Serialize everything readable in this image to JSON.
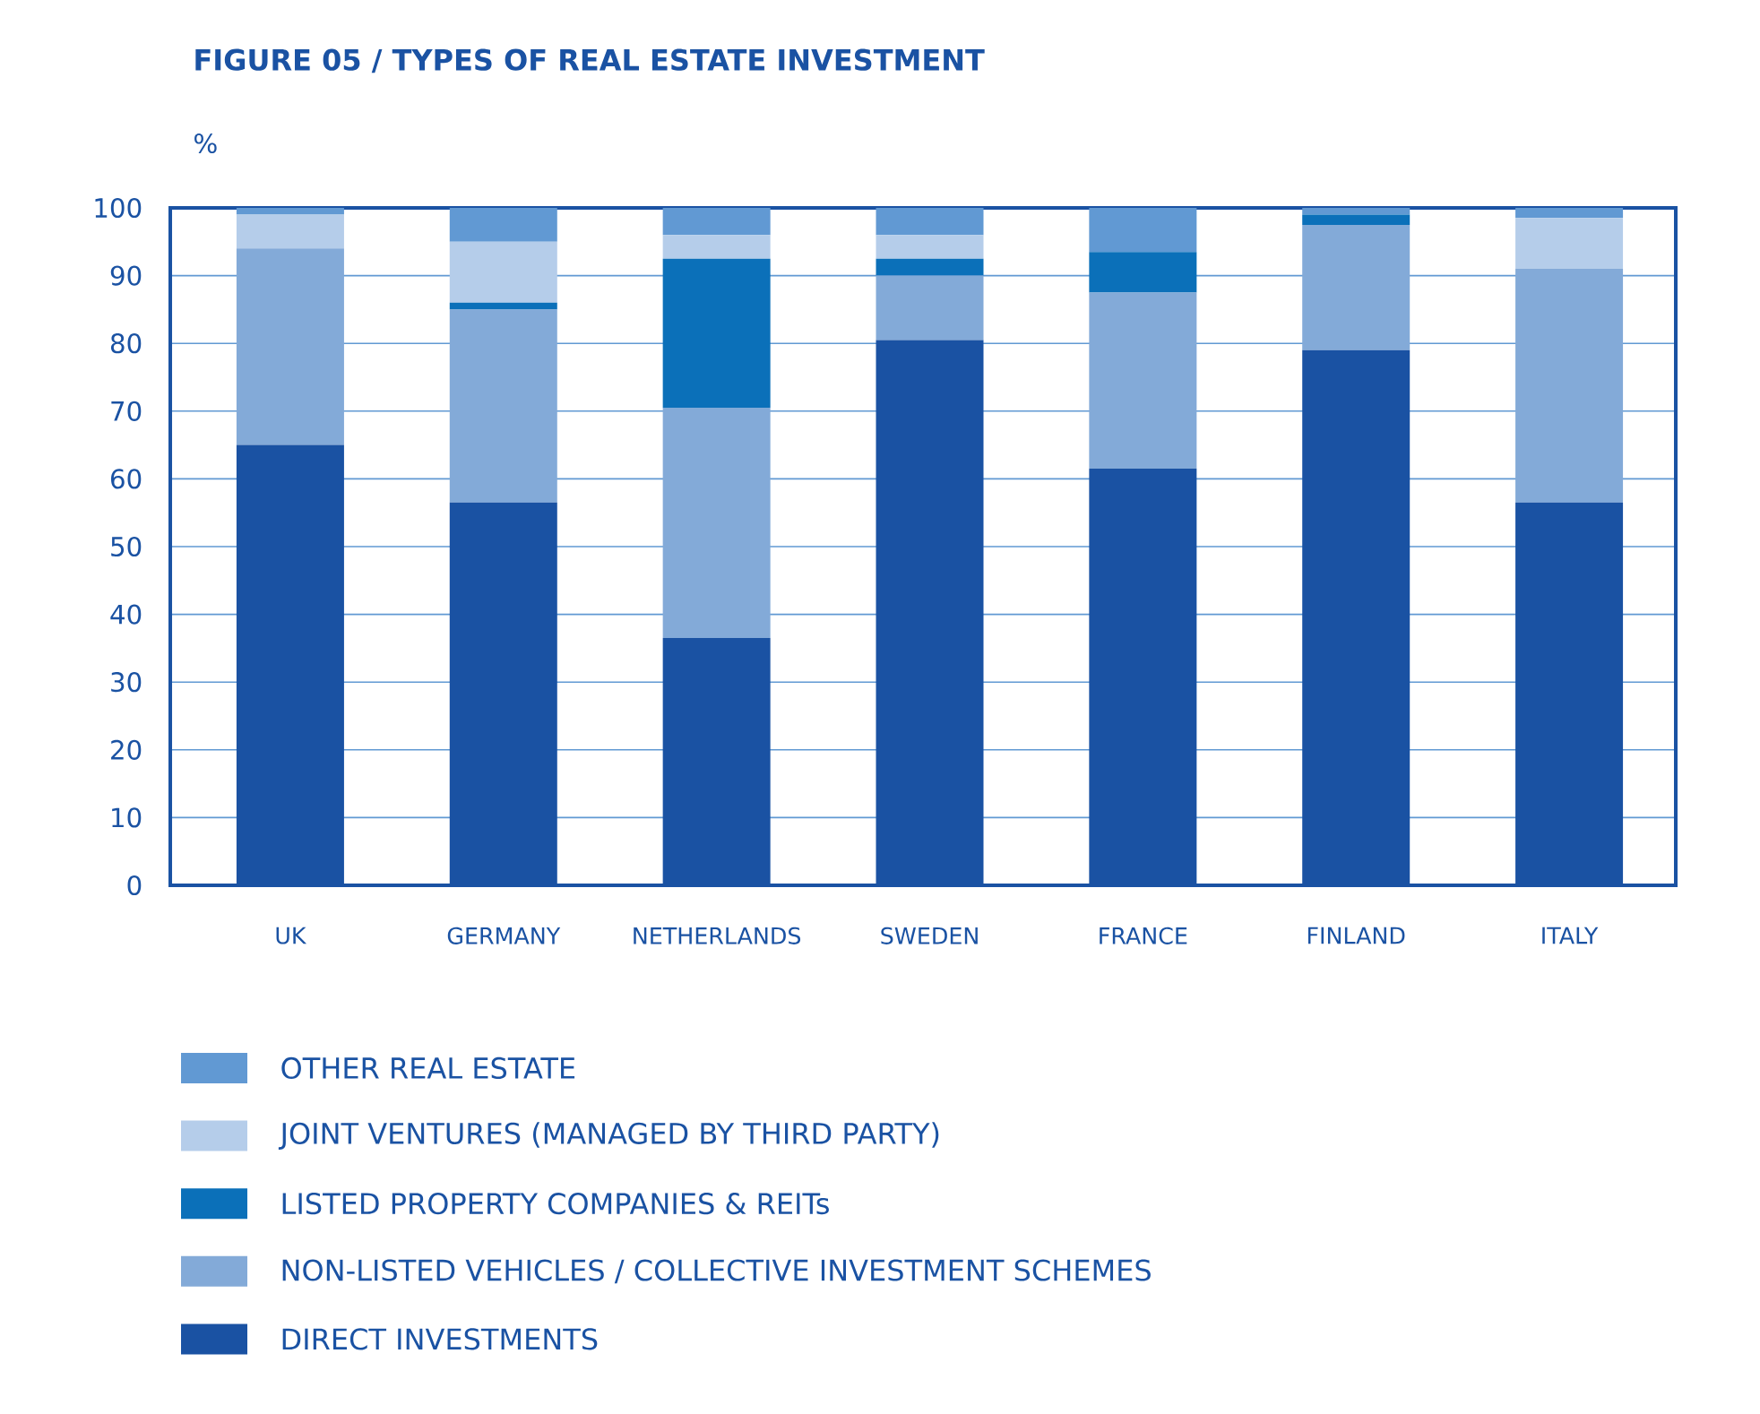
{
  "chart_data": {
    "type": "bar",
    "stacked": true,
    "title": "FIGURE 05 / TYPES OF REAL ESTATE INVESTMENT",
    "ylabel": "%",
    "categories": [
      "UK",
      "GERMANY",
      "NETHERLANDS",
      "SWEDEN",
      "FRANCE",
      "FINLAND",
      "ITALY"
    ],
    "series": [
      {
        "name": "DIRECT INVESTMENTS",
        "color": "#1a52a3",
        "values": [
          65,
          56.5,
          36.5,
          80.5,
          61.5,
          79,
          56.5
        ]
      },
      {
        "name": "NON-LISTED VEHICLES / COLLECTIVE INVESTMENT SCHEMES",
        "color": "#83aad8",
        "values": [
          29,
          28.5,
          34,
          9.5,
          26,
          18.5,
          34.5
        ]
      },
      {
        "name": "LISTED PROPERTY COMPANIES & REITs",
        "color": "#0b70b9",
        "values": [
          0,
          1,
          22,
          2.5,
          6,
          1.5,
          0
        ]
      },
      {
        "name": "JOINT VENTURES (MANAGED BY THIRD PARTY)",
        "color": "#b5cdea",
        "values": [
          5,
          9,
          3.5,
          3.5,
          0,
          0,
          7.5
        ]
      },
      {
        "name": "OTHER REAL ESTATE",
        "color": "#6199d3",
        "values": [
          1,
          5,
          4,
          4,
          6.5,
          1,
          1.5
        ]
      }
    ],
    "ylim": [
      0,
      100
    ],
    "yticks": [
      0,
      10,
      20,
      30,
      40,
      50,
      60,
      70,
      80,
      90,
      100
    ],
    "grid": "y",
    "legend": "bottom"
  }
}
